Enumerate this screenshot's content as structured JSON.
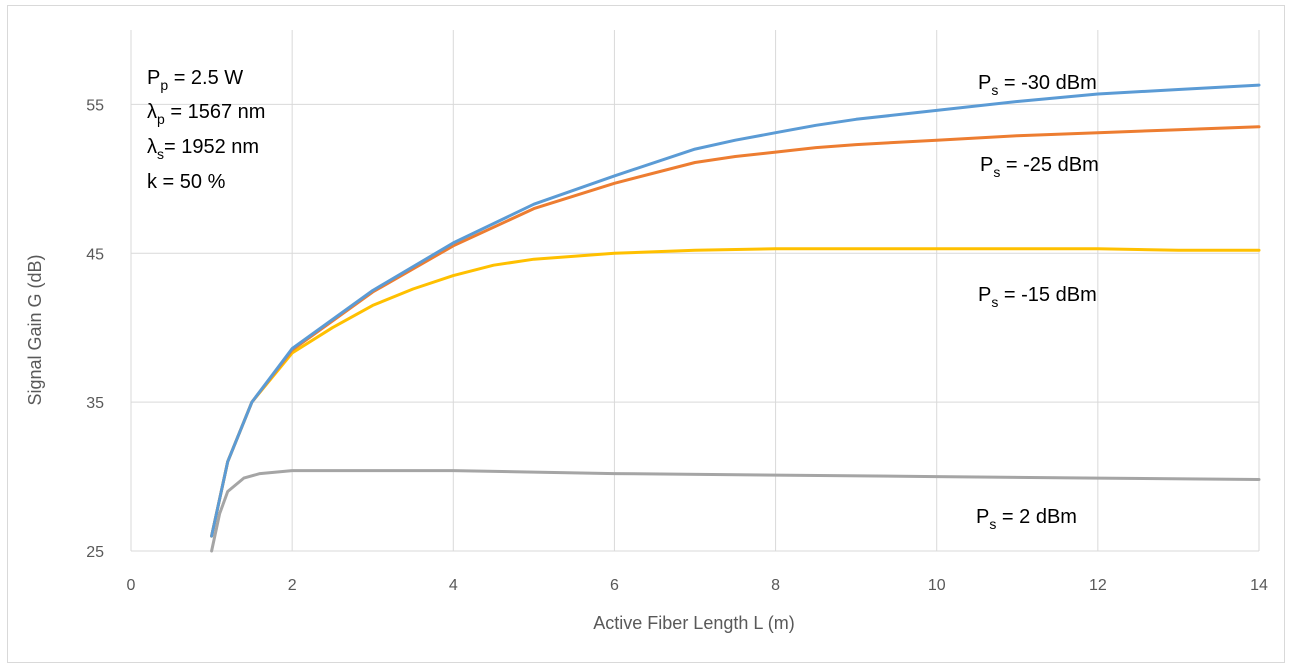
{
  "chart_data": {
    "type": "line",
    "title": "",
    "xlabel": "Active Fiber Length L (m)",
    "ylabel": "Signal Gain G (dB)",
    "xlim": [
      0,
      14
    ],
    "ylim": [
      25,
      60
    ],
    "xticks": [
      "0",
      "2",
      "4",
      "6",
      "8",
      "10",
      "12",
      "14"
    ],
    "yticks": [
      "25",
      "35",
      "45",
      "55"
    ],
    "grid": true,
    "legend": "none",
    "params_box": {
      "lines": [
        {
          "main": "P",
          "sub": "p",
          "rest": " = 2.5 W"
        },
        {
          "main": "λ",
          "sub": "p",
          "rest": " = 1567 nm"
        },
        {
          "main": "λ",
          "sub": "s",
          "rest": "= 1952 nm"
        },
        {
          "main": "k = 50 %",
          "sub": "",
          "rest": ""
        }
      ]
    },
    "series": [
      {
        "color": "#5B9BD5",
        "label": {
          "main": "P",
          "sub": "s",
          "rest": " = -30 dBm"
        },
        "x": [
          1.0,
          1.2,
          1.5,
          2.0,
          3.0,
          4.0,
          5.0,
          6.0,
          7.0,
          7.5,
          8.0,
          8.5,
          9.0,
          10.0,
          11.0,
          12.0,
          13.0,
          14.0
        ],
        "y": [
          26.0,
          31.0,
          35.0,
          38.6,
          42.5,
          45.7,
          48.3,
          50.2,
          52.0,
          52.6,
          53.1,
          53.6,
          54.0,
          54.6,
          55.2,
          55.7,
          56.0,
          56.3
        ]
      },
      {
        "color": "#ED7D31",
        "label": {
          "main": "P",
          "sub": "s",
          "rest": " = -25 dBm"
        },
        "x": [
          1.0,
          1.2,
          1.5,
          2.0,
          3.0,
          4.0,
          5.0,
          6.0,
          7.0,
          7.5,
          8.0,
          8.5,
          9.0,
          10.0,
          11.0,
          12.0,
          13.0,
          14.0
        ],
        "y": [
          26.0,
          31.0,
          35.0,
          38.5,
          42.4,
          45.5,
          48.0,
          49.7,
          51.1,
          51.5,
          51.8,
          52.1,
          52.3,
          52.6,
          52.9,
          53.1,
          53.3,
          53.5
        ]
      },
      {
        "color": "#FFC000",
        "label": {
          "main": "P",
          "sub": "s",
          "rest": " = -15 dBm"
        },
        "x": [
          1.0,
          1.2,
          1.5,
          2.0,
          2.5,
          3.0,
          3.5,
          4.0,
          4.5,
          5.0,
          6.0,
          7.0,
          8.0,
          9.0,
          10.0,
          11.0,
          12.0,
          13.0,
          14.0
        ],
        "y": [
          26.0,
          31.0,
          35.0,
          38.3,
          40.0,
          41.5,
          42.6,
          43.5,
          44.2,
          44.6,
          45.0,
          45.2,
          45.3,
          45.3,
          45.3,
          45.3,
          45.3,
          45.2,
          45.2
        ]
      },
      {
        "color": "#A5A5A5",
        "label": {
          "main": "P",
          "sub": "s",
          "rest": " = 2 dBm"
        },
        "x": [
          1.0,
          1.1,
          1.2,
          1.4,
          1.6,
          2.0,
          3.0,
          4.0,
          5.0,
          6.0,
          8.0,
          10.0,
          12.0,
          14.0
        ],
        "y": [
          25.0,
          27.5,
          29.0,
          29.9,
          30.2,
          30.4,
          30.4,
          30.4,
          30.3,
          30.2,
          30.1,
          30.0,
          29.9,
          29.8
        ]
      }
    ]
  }
}
